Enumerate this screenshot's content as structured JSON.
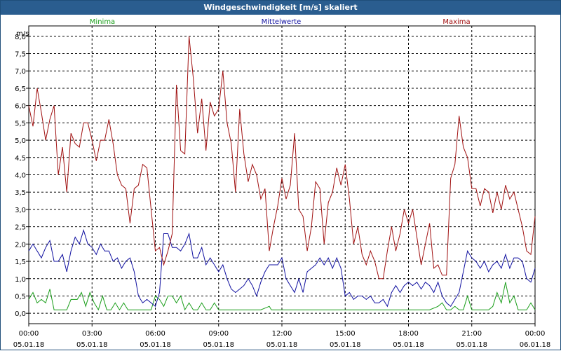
{
  "chart_data": {
    "type": "line",
    "title": "Windgeschwindigkeit [m/s] skaliert",
    "unit": "m/s",
    "ylim": [
      -0.3,
      8.3
    ],
    "yticks": [
      "0,0",
      "0,5",
      "1,0",
      "1,5",
      "2,0",
      "2,5",
      "3,0",
      "3,5",
      "4,0",
      "4,5",
      "5,0",
      "5,5",
      "6,0",
      "6,5",
      "7,0",
      "7,5",
      "8,0"
    ],
    "xticks": [
      {
        "time": "00:00",
        "date": "05.01.18"
      },
      {
        "time": "03:00",
        "date": "05.01.18"
      },
      {
        "time": "06:00",
        "date": "05.01.18"
      },
      {
        "time": "09:00",
        "date": "05.01.18"
      },
      {
        "time": "12:00",
        "date": "05.01.18"
      },
      {
        "time": "15:00",
        "date": "05.01.18"
      },
      {
        "time": "18:00",
        "date": "05.01.18"
      },
      {
        "time": "21:00",
        "date": "05.01.18"
      },
      {
        "time": "00:00",
        "date": "06.01.18"
      }
    ],
    "x_hours_range": [
      0,
      24
    ],
    "grid": true,
    "series": [
      {
        "name": "Minima",
        "color": "#1a9e1a",
        "points": [
          [
            0,
            0.4
          ],
          [
            0.2,
            0.6
          ],
          [
            0.4,
            0.3
          ],
          [
            0.6,
            0.4
          ],
          [
            0.8,
            0.3
          ],
          [
            1,
            0.7
          ],
          [
            1.2,
            0.1
          ],
          [
            1.5,
            0.1
          ],
          [
            1.8,
            0.1
          ],
          [
            2,
            0.4
          ],
          [
            2.3,
            0.4
          ],
          [
            2.5,
            0.6
          ],
          [
            2.7,
            0.2
          ],
          [
            2.9,
            0.6
          ],
          [
            3.1,
            0.3
          ],
          [
            3.3,
            0.1
          ],
          [
            3.5,
            0.5
          ],
          [
            3.7,
            0.1
          ],
          [
            3.9,
            0.1
          ],
          [
            4.1,
            0.3
          ],
          [
            4.3,
            0.1
          ],
          [
            4.5,
            0.3
          ],
          [
            4.7,
            0.1
          ],
          [
            5,
            0.1
          ],
          [
            5.3,
            0.1
          ],
          [
            5.6,
            0.1
          ],
          [
            5.8,
            0.1
          ],
          [
            6,
            0.5
          ],
          [
            6.2,
            0.4
          ],
          [
            6.4,
            0.2
          ],
          [
            6.6,
            0.5
          ],
          [
            6.8,
            0.5
          ],
          [
            7,
            0.3
          ],
          [
            7.2,
            0.5
          ],
          [
            7.4,
            0.1
          ],
          [
            7.6,
            0.3
          ],
          [
            7.8,
            0.1
          ],
          [
            8,
            0.1
          ],
          [
            8.2,
            0.3
          ],
          [
            8.4,
            0.1
          ],
          [
            8.6,
            0.1
          ],
          [
            8.8,
            0.3
          ],
          [
            9,
            0.1
          ],
          [
            10,
            0.1
          ],
          [
            11,
            0.1
          ],
          [
            11.4,
            0.2
          ],
          [
            11.5,
            0.1
          ],
          [
            12,
            0.1
          ],
          [
            14,
            0.1
          ],
          [
            16,
            0.1
          ],
          [
            18,
            0.1
          ],
          [
            19,
            0.1
          ],
          [
            19.4,
            0.2
          ],
          [
            19.6,
            0.3
          ],
          [
            19.8,
            0.1
          ],
          [
            20,
            0.1
          ],
          [
            20.2,
            0.2
          ],
          [
            20.4,
            0.1
          ],
          [
            20.6,
            0.1
          ],
          [
            20.8,
            0.5
          ],
          [
            21,
            0.1
          ],
          [
            21.2,
            0.1
          ],
          [
            21.4,
            0.1
          ],
          [
            21.6,
            0.1
          ],
          [
            21.8,
            0.1
          ],
          [
            22,
            0.2
          ],
          [
            22.2,
            0.6
          ],
          [
            22.4,
            0.3
          ],
          [
            22.6,
            0.9
          ],
          [
            22.8,
            0.3
          ],
          [
            23,
            0.5
          ],
          [
            23.2,
            0.1
          ],
          [
            23.4,
            0.1
          ],
          [
            23.6,
            0.1
          ],
          [
            23.8,
            0.3
          ],
          [
            24,
            0.1
          ]
        ]
      },
      {
        "name": "Mittelwerte",
        "color": "#1010a0",
        "points": [
          [
            0,
            1.8
          ],
          [
            0.2,
            2.0
          ],
          [
            0.4,
            1.8
          ],
          [
            0.6,
            1.6
          ],
          [
            0.8,
            1.9
          ],
          [
            1,
            2.1
          ],
          [
            1.2,
            1.5
          ],
          [
            1.4,
            1.5
          ],
          [
            1.6,
            1.7
          ],
          [
            1.8,
            1.2
          ],
          [
            2,
            1.8
          ],
          [
            2.2,
            2.2
          ],
          [
            2.4,
            2.0
          ],
          [
            2.6,
            2.4
          ],
          [
            2.8,
            2.0
          ],
          [
            3,
            1.9
          ],
          [
            3.2,
            1.7
          ],
          [
            3.4,
            2.0
          ],
          [
            3.6,
            1.8
          ],
          [
            3.8,
            1.8
          ],
          [
            4,
            1.5
          ],
          [
            4.2,
            1.6
          ],
          [
            4.4,
            1.3
          ],
          [
            4.6,
            1.5
          ],
          [
            4.8,
            1.6
          ],
          [
            5,
            1.2
          ],
          [
            5.2,
            0.5
          ],
          [
            5.4,
            0.3
          ],
          [
            5.6,
            0.4
          ],
          [
            5.8,
            0.3
          ],
          [
            6,
            0.2
          ],
          [
            6.2,
            0.6
          ],
          [
            6.4,
            2.3
          ],
          [
            6.6,
            2.3
          ],
          [
            6.8,
            1.9
          ],
          [
            7,
            1.9
          ],
          [
            7.2,
            1.8
          ],
          [
            7.4,
            2.0
          ],
          [
            7.6,
            2.3
          ],
          [
            7.8,
            1.6
          ],
          [
            8,
            1.6
          ],
          [
            8.2,
            1.9
          ],
          [
            8.4,
            1.4
          ],
          [
            8.6,
            1.6
          ],
          [
            8.8,
            1.4
          ],
          [
            9,
            1.2
          ],
          [
            9.2,
            1.4
          ],
          [
            9.4,
            1.0
          ],
          [
            9.6,
            0.7
          ],
          [
            9.8,
            0.6
          ],
          [
            10,
            0.7
          ],
          [
            10.2,
            0.8
          ],
          [
            10.4,
            1.0
          ],
          [
            10.6,
            0.8
          ],
          [
            10.8,
            0.5
          ],
          [
            11,
            0.9
          ],
          [
            11.2,
            1.2
          ],
          [
            11.4,
            1.4
          ],
          [
            11.6,
            1.4
          ],
          [
            11.8,
            1.4
          ],
          [
            12,
            1.6
          ],
          [
            12.2,
            1.0
          ],
          [
            12.4,
            0.8
          ],
          [
            12.6,
            0.6
          ],
          [
            12.8,
            1.0
          ],
          [
            13,
            0.6
          ],
          [
            13.2,
            1.2
          ],
          [
            13.4,
            1.3
          ],
          [
            13.6,
            1.4
          ],
          [
            13.8,
            1.6
          ],
          [
            14,
            1.4
          ],
          [
            14.2,
            1.6
          ],
          [
            14.4,
            1.3
          ],
          [
            14.6,
            1.6
          ],
          [
            14.8,
            1.3
          ],
          [
            15,
            0.5
          ],
          [
            15.2,
            0.6
          ],
          [
            15.4,
            0.4
          ],
          [
            15.6,
            0.5
          ],
          [
            15.8,
            0.5
          ],
          [
            16,
            0.4
          ],
          [
            16.2,
            0.5
          ],
          [
            16.4,
            0.3
          ],
          [
            16.6,
            0.3
          ],
          [
            16.8,
            0.4
          ],
          [
            17,
            0.2
          ],
          [
            17.2,
            0.6
          ],
          [
            17.4,
            0.8
          ],
          [
            17.6,
            0.6
          ],
          [
            17.8,
            0.8
          ],
          [
            18,
            0.9
          ],
          [
            18.2,
            0.8
          ],
          [
            18.4,
            0.9
          ],
          [
            18.6,
            0.7
          ],
          [
            18.8,
            0.9
          ],
          [
            19,
            0.8
          ],
          [
            19.2,
            0.6
          ],
          [
            19.4,
            0.9
          ],
          [
            19.6,
            0.5
          ],
          [
            19.8,
            0.3
          ],
          [
            20,
            0.2
          ],
          [
            20.2,
            0.4
          ],
          [
            20.4,
            0.6
          ],
          [
            20.6,
            1.2
          ],
          [
            20.8,
            1.8
          ],
          [
            21,
            1.6
          ],
          [
            21.2,
            1.5
          ],
          [
            21.4,
            1.3
          ],
          [
            21.6,
            1.5
          ],
          [
            21.8,
            1.2
          ],
          [
            22,
            1.4
          ],
          [
            22.2,
            1.5
          ],
          [
            22.4,
            1.3
          ],
          [
            22.6,
            1.7
          ],
          [
            22.8,
            1.3
          ],
          [
            23,
            1.6
          ],
          [
            23.2,
            1.6
          ],
          [
            23.4,
            1.5
          ],
          [
            23.6,
            1.0
          ],
          [
            23.8,
            0.9
          ],
          [
            24,
            1.3
          ]
        ]
      },
      {
        "name": "Maxima",
        "color": "#a01010",
        "points": [
          [
            0,
            6.0
          ],
          [
            0.2,
            5.4
          ],
          [
            0.4,
            6.5
          ],
          [
            0.6,
            5.8
          ],
          [
            0.8,
            5.0
          ],
          [
            1,
            5.6
          ],
          [
            1.2,
            6.0
          ],
          [
            1.4,
            4.0
          ],
          [
            1.6,
            4.8
          ],
          [
            1.8,
            3.5
          ],
          [
            2,
            5.2
          ],
          [
            2.2,
            4.9
          ],
          [
            2.4,
            4.8
          ],
          [
            2.6,
            5.5
          ],
          [
            2.8,
            5.5
          ],
          [
            3,
            5.0
          ],
          [
            3.2,
            4.4
          ],
          [
            3.4,
            5.0
          ],
          [
            3.6,
            5.0
          ],
          [
            3.8,
            5.6
          ],
          [
            4,
            4.9
          ],
          [
            4.2,
            4.0
          ],
          [
            4.4,
            3.7
          ],
          [
            4.6,
            3.6
          ],
          [
            4.8,
            2.6
          ],
          [
            5,
            3.6
          ],
          [
            5.2,
            3.7
          ],
          [
            5.4,
            4.3
          ],
          [
            5.6,
            4.2
          ],
          [
            5.8,
            3.0
          ],
          [
            6,
            1.8
          ],
          [
            6.2,
            1.9
          ],
          [
            6.4,
            1.4
          ],
          [
            6.6,
            1.8
          ],
          [
            6.8,
            2.3
          ],
          [
            7,
            6.6
          ],
          [
            7.2,
            4.7
          ],
          [
            7.4,
            4.6
          ],
          [
            7.6,
            8.0
          ],
          [
            7.8,
            6.8
          ],
          [
            8,
            5.2
          ],
          [
            8.2,
            6.2
          ],
          [
            8.4,
            4.7
          ],
          [
            8.6,
            6.1
          ],
          [
            8.8,
            5.7
          ],
          [
            9,
            5.9
          ],
          [
            9.2,
            7.0
          ],
          [
            9.4,
            5.5
          ],
          [
            9.6,
            4.9
          ],
          [
            9.8,
            3.5
          ],
          [
            10,
            5.9
          ],
          [
            10.2,
            4.6
          ],
          [
            10.4,
            3.8
          ],
          [
            10.6,
            4.3
          ],
          [
            10.8,
            4.0
          ],
          [
            11,
            3.3
          ],
          [
            11.2,
            3.6
          ],
          [
            11.4,
            1.8
          ],
          [
            11.6,
            2.5
          ],
          [
            11.8,
            3.1
          ],
          [
            12,
            3.9
          ],
          [
            12.2,
            3.3
          ],
          [
            12.4,
            3.7
          ],
          [
            12.6,
            5.2
          ],
          [
            12.8,
            3.0
          ],
          [
            13,
            2.8
          ],
          [
            13.2,
            1.8
          ],
          [
            13.4,
            2.5
          ],
          [
            13.6,
            3.8
          ],
          [
            13.8,
            3.6
          ],
          [
            14,
            2.0
          ],
          [
            14.2,
            3.2
          ],
          [
            14.4,
            3.5
          ],
          [
            14.6,
            4.2
          ],
          [
            14.8,
            3.7
          ],
          [
            15,
            4.3
          ],
          [
            15.2,
            3.3
          ],
          [
            15.4,
            2.0
          ],
          [
            15.6,
            2.5
          ],
          [
            15.8,
            1.7
          ],
          [
            16,
            1.4
          ],
          [
            16.2,
            1.8
          ],
          [
            16.4,
            1.5
          ],
          [
            16.6,
            1.0
          ],
          [
            16.8,
            1.0
          ],
          [
            17,
            1.8
          ],
          [
            17.2,
            2.5
          ],
          [
            17.4,
            1.8
          ],
          [
            17.6,
            2.3
          ],
          [
            17.8,
            3.0
          ],
          [
            18,
            2.6
          ],
          [
            18.2,
            3.0
          ],
          [
            18.4,
            2.2
          ],
          [
            18.6,
            1.4
          ],
          [
            18.8,
            2.0
          ],
          [
            19,
            2.6
          ],
          [
            19.2,
            1.3
          ],
          [
            19.4,
            1.4
          ],
          [
            19.6,
            1.1
          ],
          [
            19.8,
            1.1
          ],
          [
            20,
            3.9
          ],
          [
            20.2,
            4.3
          ],
          [
            20.4,
            5.7
          ],
          [
            20.6,
            4.8
          ],
          [
            20.8,
            4.5
          ],
          [
            21,
            3.6
          ],
          [
            21.2,
            3.6
          ],
          [
            21.4,
            3.1
          ],
          [
            21.6,
            3.6
          ],
          [
            21.8,
            3.5
          ],
          [
            22,
            2.9
          ],
          [
            22.2,
            3.5
          ],
          [
            22.4,
            3.0
          ],
          [
            22.6,
            3.7
          ],
          [
            22.8,
            3.3
          ],
          [
            23,
            3.5
          ],
          [
            23.2,
            3.0
          ],
          [
            23.4,
            2.5
          ],
          [
            23.6,
            1.8
          ],
          [
            23.8,
            1.7
          ],
          [
            24,
            2.8
          ]
        ]
      }
    ]
  }
}
